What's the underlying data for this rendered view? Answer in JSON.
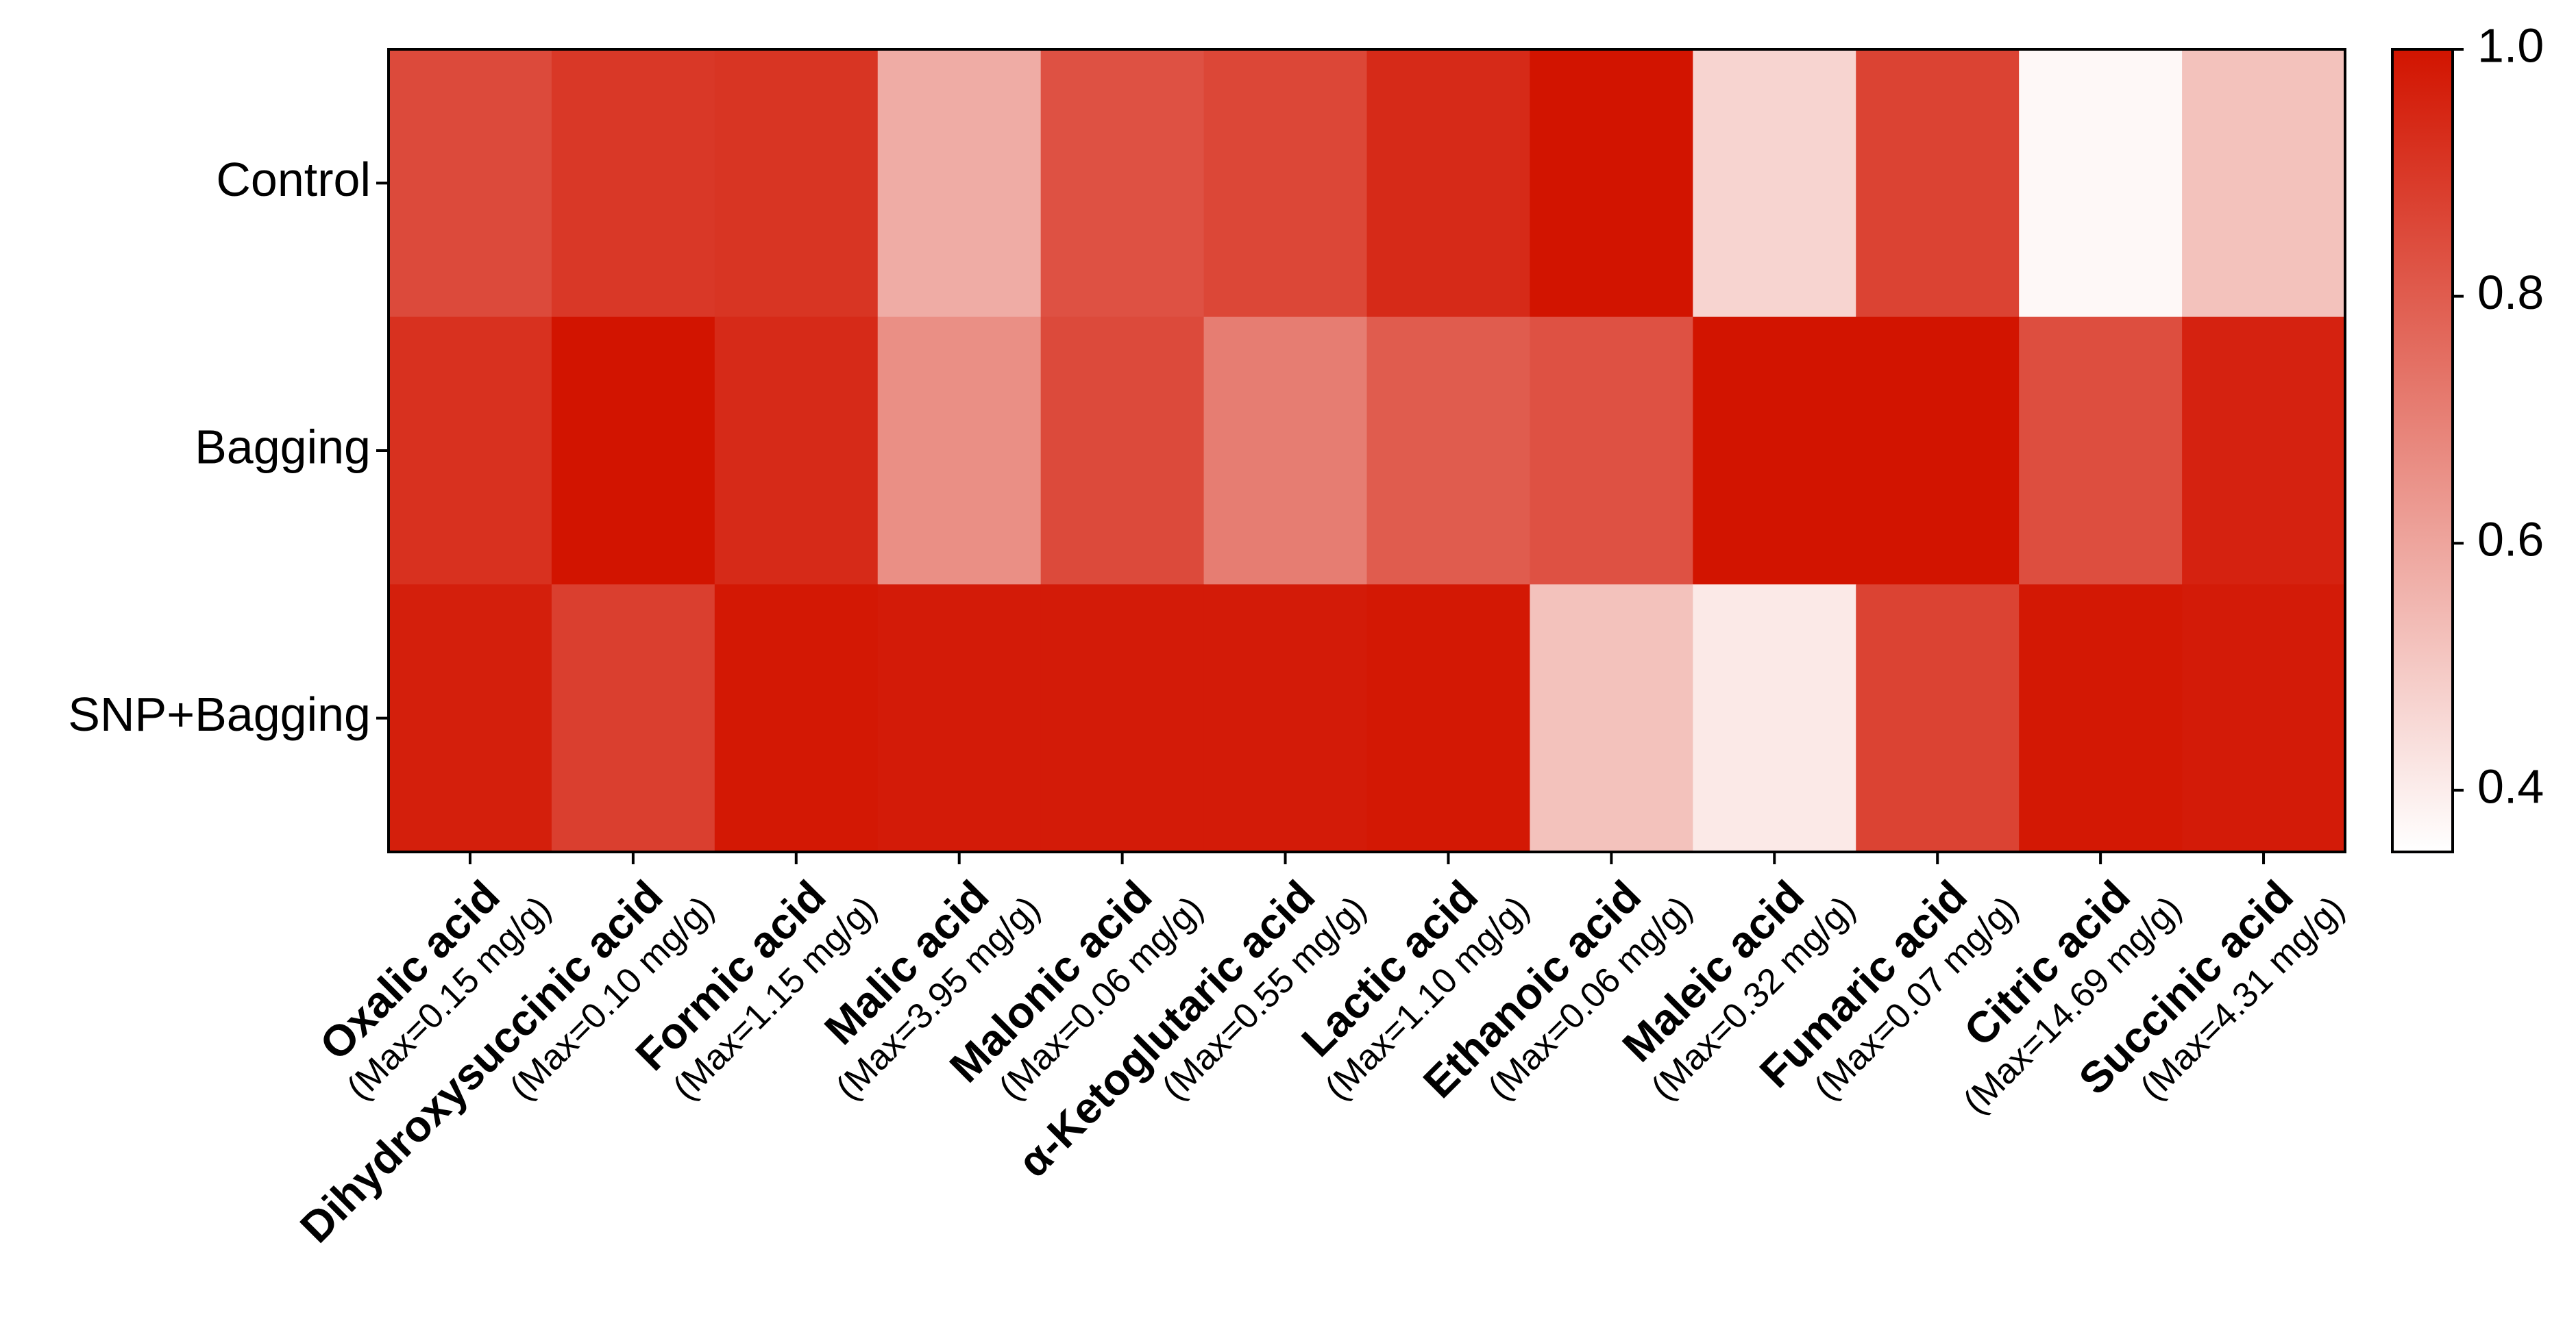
{
  "chart_data": {
    "type": "heatmap",
    "title": "",
    "rows": [
      "Control",
      "Bagging",
      "SNP+Bagging"
    ],
    "columns": [
      {
        "name": "Oxalic acid",
        "max_prefix": "(Max=",
        "max_value": "0.15 mg/g",
        "max_suffix": ")"
      },
      {
        "name": "Dihydroxysuccinic acid",
        "max_prefix": "(Max=",
        "max_value": "0.10 mg/g",
        "max_suffix": ")"
      },
      {
        "name": "Formic acid",
        "max_prefix": "(Max=",
        "max_value": "1.15 mg/g",
        "max_suffix": ")"
      },
      {
        "name": "Malic acid",
        "max_prefix": "(Max=",
        "max_value": "3.95 mg/g",
        "max_suffix": ")"
      },
      {
        "name": "Malonic acid",
        "max_prefix": "(Max=",
        "max_value": "0.06 mg/g",
        "max_suffix": ")"
      },
      {
        "name": "α-Ketoglutaric acid",
        "max_prefix": "(Max=",
        "max_value": "0.55 mg/g",
        "max_suffix": ")"
      },
      {
        "name": "Lactic acid",
        "max_prefix": "(Max=",
        "max_value": "1.10 mg/g",
        "max_suffix": ")"
      },
      {
        "name": "Ethanoic acid",
        "max_prefix": "(Max=",
        "max_value": "0.06 mg/g",
        "max_suffix": ")"
      },
      {
        "name": "Maleic acid",
        "max_prefix": "(Max=",
        "max_value": "0.32 mg/g",
        "max_suffix": ")"
      },
      {
        "name": "Fumaric acid",
        "max_prefix": "(Max=",
        "max_value": "0.07 mg/g",
        "max_suffix": ")"
      },
      {
        "name": "Citric acid",
        "max_prefix": "(Max=",
        "max_value": "14.69 mg/g",
        "max_suffix": ")"
      },
      {
        "name": "Succinic acid",
        "max_prefix": "(Max=",
        "max_value": "4.31 mg/g",
        "max_suffix": ")"
      }
    ],
    "values": [
      [
        0.85,
        0.9,
        0.91,
        0.58,
        0.83,
        0.86,
        0.94,
        1.0,
        0.47,
        0.87,
        0.37,
        0.52
      ],
      [
        0.92,
        1.0,
        0.94,
        0.66,
        0.85,
        0.71,
        0.8,
        0.83,
        1.0,
        1.0,
        0.84,
        0.96
      ],
      [
        0.97,
        0.88,
        0.99,
        0.98,
        0.98,
        0.98,
        0.99,
        0.52,
        0.41,
        0.87,
        0.99,
        0.98
      ]
    ],
    "colorbar": {
      "min": 0.35,
      "max": 1.0,
      "ticks": [
        0.4,
        0.6,
        0.8,
        1.0
      ],
      "tick_labels": [
        "0.4",
        "0.6",
        "0.8",
        "1.0"
      ],
      "color_low": "#ffffff",
      "color_high": "#d21400"
    },
    "xlabel": "",
    "ylabel": "",
    "legend": "right"
  }
}
